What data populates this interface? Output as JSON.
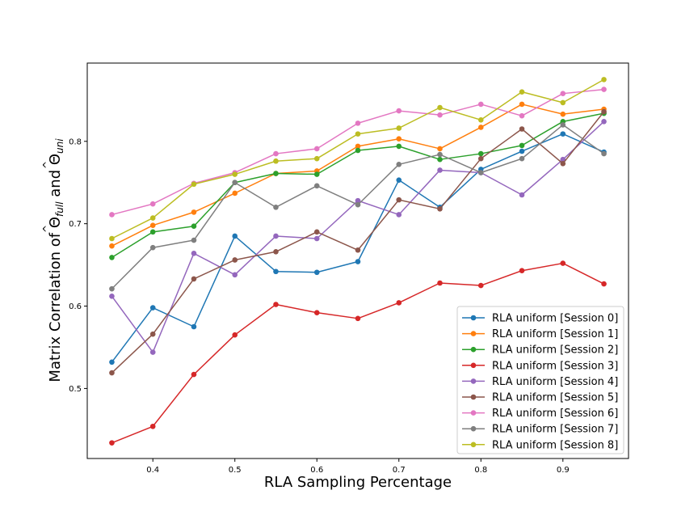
{
  "chart_data": {
    "type": "line",
    "title": "",
    "xlabel": "RLA Sampling Percentage",
    "ylabel": "Matrix Correlation of Θ̂full and Θ̂uni",
    "ylabel_parts": {
      "prefix": "Matrix Correlation of ",
      "theta1": "Θ",
      "sub1": "full",
      "and": " and ",
      "theta2": "Θ",
      "sub2": "uni",
      "hat": "^"
    },
    "xlim": [
      0.32,
      0.98
    ],
    "ylim": [
      0.415,
      0.895
    ],
    "xticks": [
      0.4,
      0.5,
      0.6,
      0.7,
      0.8,
      0.9
    ],
    "xtick_labels": [
      "0.4",
      "0.5",
      "0.6",
      "0.7",
      "0.8",
      "0.9"
    ],
    "yticks": [
      0.5,
      0.6,
      0.7,
      0.8
    ],
    "ytick_labels": [
      "0.5",
      "0.6",
      "0.7",
      "0.8"
    ],
    "grid": false,
    "legend_position": "bottom-right",
    "x": [
      0.35,
      0.4,
      0.45,
      0.5,
      0.55,
      0.6,
      0.65,
      0.7,
      0.75,
      0.8,
      0.85,
      0.9,
      0.95
    ],
    "series": [
      {
        "name": "RLA uniform [Session 0]",
        "color": "#1f77b4",
        "values": [
          0.532,
          0.598,
          0.575,
          0.685,
          0.642,
          0.641,
          0.654,
          0.753,
          0.72,
          0.766,
          0.788,
          0.809,
          0.787
        ]
      },
      {
        "name": "RLA uniform [Session 1]",
        "color": "#ff7f0e",
        "values": [
          0.673,
          0.698,
          0.714,
          0.737,
          0.761,
          0.764,
          0.794,
          0.803,
          0.791,
          0.817,
          0.845,
          0.833,
          0.839
        ]
      },
      {
        "name": "RLA uniform [Session 2]",
        "color": "#2ca02c",
        "values": [
          0.659,
          0.69,
          0.697,
          0.75,
          0.761,
          0.76,
          0.789,
          0.794,
          0.778,
          0.785,
          0.795,
          0.824,
          0.834
        ]
      },
      {
        "name": "RLA uniform [Session 3]",
        "color": "#d62728",
        "values": [
          0.434,
          0.454,
          0.517,
          0.565,
          0.602,
          0.592,
          0.585,
          0.604,
          0.628,
          0.625,
          0.643,
          0.652,
          0.627
        ]
      },
      {
        "name": "RLA uniform [Session 4]",
        "color": "#9467bd",
        "values": [
          0.612,
          0.544,
          0.664,
          0.638,
          0.685,
          0.682,
          0.728,
          0.711,
          0.765,
          0.762,
          0.735,
          0.778,
          0.824
        ]
      },
      {
        "name": "RLA uniform [Session 5]",
        "color": "#8c564b",
        "values": [
          0.519,
          0.566,
          0.633,
          0.656,
          0.666,
          0.69,
          0.668,
          0.729,
          0.718,
          0.779,
          0.815,
          0.773,
          0.836
        ]
      },
      {
        "name": "RLA uniform [Session 6]",
        "color": "#e377c2",
        "values": [
          0.711,
          0.724,
          0.749,
          0.762,
          0.785,
          0.791,
          0.822,
          0.837,
          0.832,
          0.845,
          0.831,
          0.858,
          0.863
        ]
      },
      {
        "name": "RLA uniform [Session 7]",
        "color": "#7f7f7f",
        "values": [
          0.621,
          0.671,
          0.68,
          0.75,
          0.72,
          0.746,
          0.723,
          0.772,
          0.784,
          0.762,
          0.779,
          0.82,
          0.785
        ]
      },
      {
        "name": "RLA uniform [Session 8]",
        "color": "#bcbd22",
        "values": [
          0.682,
          0.707,
          0.748,
          0.76,
          0.776,
          0.779,
          0.809,
          0.816,
          0.841,
          0.826,
          0.86,
          0.847,
          0.875
        ]
      }
    ]
  }
}
